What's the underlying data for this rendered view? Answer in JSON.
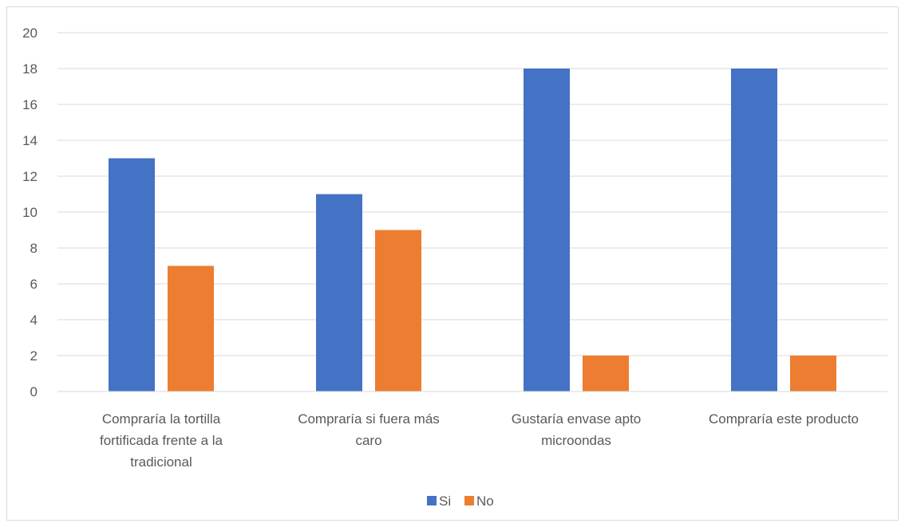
{
  "chart_data": {
    "type": "bar",
    "categories": [
      [
        "Compraría la tortilla",
        "fortificada frente a la",
        "tradicional"
      ],
      [
        "Compraría si fuera más",
        "caro"
      ],
      [
        "Gustaría envase apto",
        "microondas"
      ],
      [
        "Compraría este producto"
      ]
    ],
    "series": [
      {
        "name": "Si",
        "values": [
          13,
          11,
          18,
          18
        ],
        "color": "#4472C4"
      },
      {
        "name": "No",
        "values": [
          7,
          9,
          2,
          2
        ],
        "color": "#ED7D31"
      }
    ],
    "ylim": [
      0,
      20
    ],
    "yticks": [
      0,
      2,
      4,
      6,
      8,
      10,
      12,
      14,
      16,
      18,
      20
    ],
    "grid": true,
    "legend_position": "bottom",
    "title": "",
    "xlabel": "",
    "ylabel": ""
  }
}
